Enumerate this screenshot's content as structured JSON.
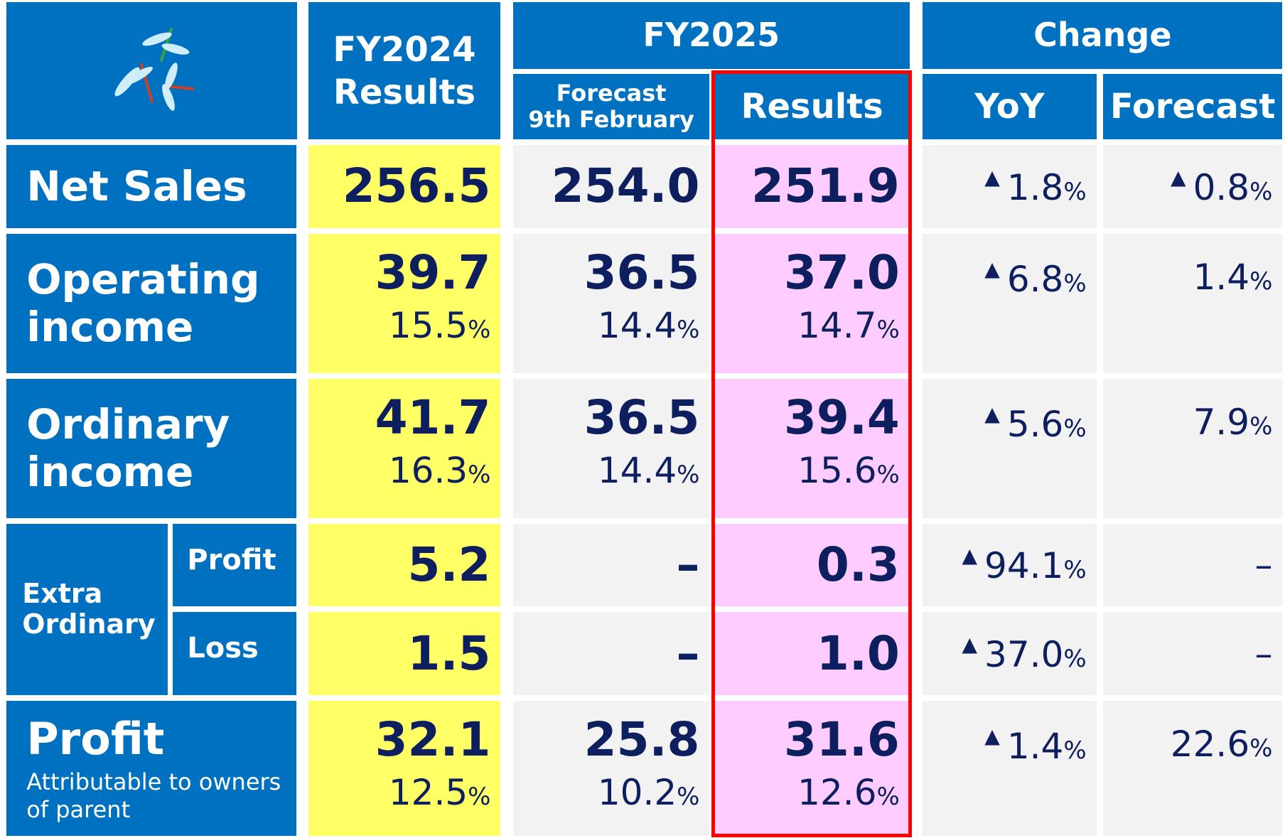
{
  "header": {
    "fy2024": {
      "line1": "FY2024",
      "line2": "Results"
    },
    "fy2025": "FY2025",
    "forecast": {
      "line1": "Forecast",
      "line2": "9th February"
    },
    "results": "Results",
    "change": "Change",
    "yoy": "YoY",
    "vs_forecast": "Forecast"
  },
  "extra_group": "Extra Ordinary",
  "rows": [
    {
      "label": "Net Sales",
      "fy2024": {
        "value": "256.5"
      },
      "forecast": {
        "value": "254.0"
      },
      "results": {
        "value": "251.9"
      },
      "yoy": {
        "mark": "▲",
        "value": "1.8",
        "unit": "%"
      },
      "vs_forecast": {
        "mark": "▲",
        "value": "0.8",
        "unit": "%"
      }
    },
    {
      "label": "Operating income",
      "fy2024": {
        "value": "39.7",
        "sub": "15.5",
        "sub_unit": "%"
      },
      "forecast": {
        "value": "36.5",
        "sub": "14.4",
        "sub_unit": "%"
      },
      "results": {
        "value": "37.0",
        "sub": "14.7",
        "sub_unit": "%"
      },
      "yoy": {
        "mark": "▲",
        "value": "6.8",
        "unit": "%"
      },
      "vs_forecast": {
        "value": "1.4",
        "unit": "%"
      }
    },
    {
      "label": "Ordinary income",
      "fy2024": {
        "value": "41.7",
        "sub": "16.3",
        "sub_unit": "%"
      },
      "forecast": {
        "value": "36.5",
        "sub": "14.4",
        "sub_unit": "%"
      },
      "results": {
        "value": "39.4",
        "sub": "15.6",
        "sub_unit": "%"
      },
      "yoy": {
        "mark": "▲",
        "value": "5.6",
        "unit": "%"
      },
      "vs_forecast": {
        "value": "7.9",
        "unit": "%"
      }
    },
    {
      "label": "Profit",
      "fy2024": {
        "value": "5.2"
      },
      "forecast": {
        "value": "–"
      },
      "results": {
        "value": "0.3"
      },
      "yoy": {
        "mark": "▲",
        "value": "94.1",
        "unit": "%"
      },
      "vs_forecast": {
        "value": "–"
      }
    },
    {
      "label": "Loss",
      "fy2024": {
        "value": "1.5"
      },
      "forecast": {
        "value": "–"
      },
      "results": {
        "value": "1.0"
      },
      "yoy": {
        "mark": "▲",
        "value": "37.0",
        "unit": "%"
      },
      "vs_forecast": {
        "value": "–"
      }
    },
    {
      "label": "Profit",
      "note": "Attributable to owners of parent",
      "fy2024": {
        "value": "32.1",
        "sub": "12.5",
        "sub_unit": "%"
      },
      "forecast": {
        "value": "25.8",
        "sub": "10.2",
        "sub_unit": "%"
      },
      "results": {
        "value": "31.6",
        "sub": "12.6",
        "sub_unit": "%"
      },
      "yoy": {
        "mark": "▲",
        "value": "1.4",
        "unit": "%"
      },
      "vs_forecast": {
        "value": "22.6",
        "unit": "%"
      }
    }
  ]
}
